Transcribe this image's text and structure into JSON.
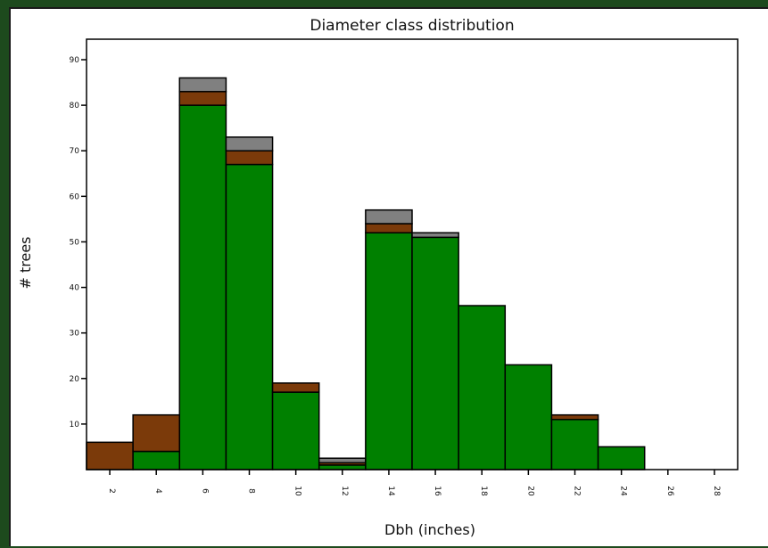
{
  "chart_data": {
    "type": "bar",
    "stacked": true,
    "title": "Diameter class distribution",
    "xlabel": "Dbh (inches)",
    "ylabel": "# trees",
    "ylim": [
      0,
      90
    ],
    "yticks": [
      10,
      20,
      30,
      40,
      50,
      60,
      70,
      80,
      90
    ],
    "xticks": [
      "2",
      "4",
      "6",
      "8",
      "10",
      "12",
      "14",
      "16",
      "18",
      "20",
      "22",
      "24",
      "26",
      "28"
    ],
    "categories": [
      2,
      4,
      6,
      8,
      10,
      12,
      14,
      16,
      18,
      20,
      22,
      24,
      26
    ],
    "series": [
      {
        "color": "#008000",
        "values": [
          0,
          4,
          80,
          67,
          17,
          1,
          52,
          51,
          36,
          23,
          11,
          5,
          0
        ]
      },
      {
        "color": "#7b3a0a",
        "values": [
          6,
          8,
          3,
          3,
          2,
          0.5,
          2,
          0,
          0,
          0,
          1,
          0,
          0
        ]
      },
      {
        "color": "#808080",
        "values": [
          0,
          0,
          3,
          3,
          0,
          1,
          3,
          1,
          0,
          0,
          0,
          0,
          0
        ]
      }
    ],
    "grid": false
  }
}
